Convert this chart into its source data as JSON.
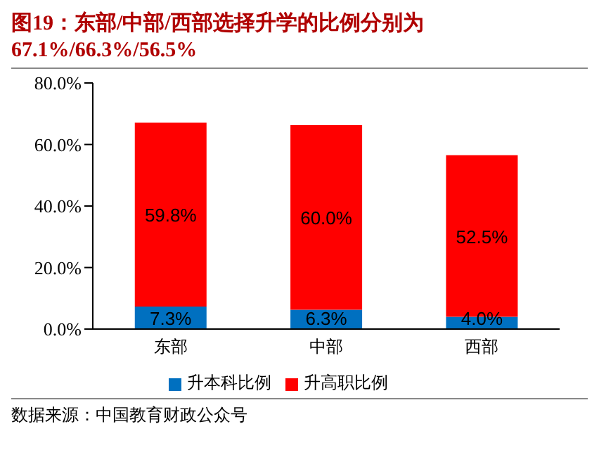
{
  "chart_data": {
    "type": "bar",
    "title": "图19：东部/中部/西部选择升学的比例分别为67.1%/66.3%/56.5%",
    "categories": [
      "东部",
      "中部",
      "西部"
    ],
    "stacked": true,
    "series": [
      {
        "name": "升本科比例",
        "color": "#0070c0",
        "values": [
          7.3,
          6.3,
          4.0
        ],
        "value_labels": [
          "7.3%",
          "6.3%",
          "4.0%"
        ]
      },
      {
        "name": "升高职比例",
        "color": "#ff0000",
        "values": [
          59.8,
          60.0,
          52.5
        ],
        "value_labels": [
          "59.8%",
          "60.0%",
          "52.5%"
        ]
      }
    ],
    "ylim": [
      0,
      80
    ],
    "yticks": [
      {
        "value": 0,
        "label": "0.0%"
      },
      {
        "value": 20,
        "label": "20.0%"
      },
      {
        "value": 40,
        "label": "40.0%"
      },
      {
        "value": 60,
        "label": "60.0%"
      },
      {
        "value": 80,
        "label": "80.0%"
      }
    ],
    "grid": false,
    "legend": "bottom",
    "annotations": [
      "数据来源：中国教育财政公众号"
    ]
  }
}
